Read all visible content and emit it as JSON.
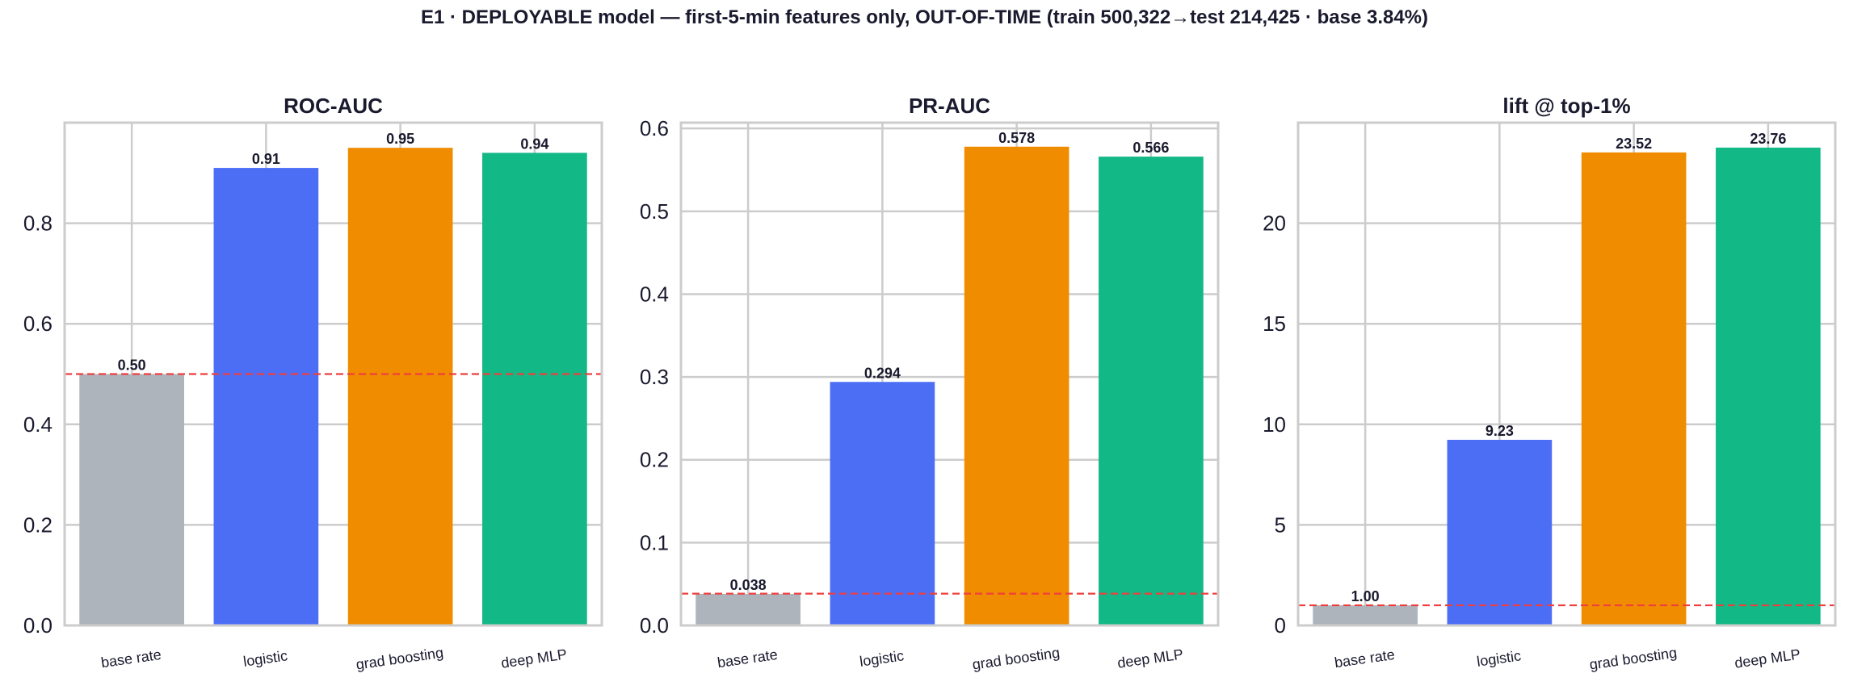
{
  "figure_title": "E1 · DEPLOYABLE model — first-5-min features only, OUT-OF-TIME (train 500,322→test 214,425 · base 3.84%)",
  "colors": {
    "base_rate": "#adb4bc",
    "logistic": "#4c6ef5",
    "grad_boosting": "#f08c00",
    "deep_mlp": "#12b886",
    "reference_line": "#f03e3e",
    "grid": "#cccccc",
    "text": "#1a1a2e"
  },
  "chart_data": [
    {
      "type": "bar",
      "title": "ROC-AUC",
      "categories": [
        "base rate",
        "logistic",
        "grad boosting",
        "deep MLP"
      ],
      "values": [
        0.5,
        0.91,
        0.95,
        0.94
      ],
      "value_labels": [
        "0.50",
        "0.91",
        "0.95",
        "0.94"
      ],
      "ylim": [
        0,
        1.0
      ],
      "yticks": [
        0.0,
        0.2,
        0.4,
        0.6,
        0.8
      ],
      "ytick_labels": [
        "0.0",
        "0.2",
        "0.4",
        "0.6",
        "0.8"
      ],
      "reference_line": 0.5,
      "grid": true
    },
    {
      "type": "bar",
      "title": "PR-AUC",
      "categories": [
        "base rate",
        "logistic",
        "grad boosting",
        "deep MLP"
      ],
      "values": [
        0.038,
        0.294,
        0.578,
        0.566
      ],
      "value_labels": [
        "0.038",
        "0.294",
        "0.578",
        "0.566"
      ],
      "ylim": [
        0,
        0.607
      ],
      "yticks": [
        0.0,
        0.1,
        0.2,
        0.3,
        0.4,
        0.5,
        0.6
      ],
      "ytick_labels": [
        "0.0",
        "0.1",
        "0.2",
        "0.3",
        "0.4",
        "0.5",
        "0.6"
      ],
      "reference_line": 0.0384,
      "grid": true
    },
    {
      "type": "bar",
      "title": "lift @ top-1%",
      "categories": [
        "base rate",
        "logistic",
        "grad boosting",
        "deep MLP"
      ],
      "values": [
        1.0,
        9.23,
        23.52,
        23.76
      ],
      "value_labels": [
        "1.00",
        "9.23",
        "23.52",
        "23.76"
      ],
      "ylim": [
        0,
        25.0
      ],
      "yticks": [
        0,
        5,
        10,
        15,
        20
      ],
      "ytick_labels": [
        "0",
        "5",
        "10",
        "15",
        "20"
      ],
      "reference_line": 1.0,
      "grid": true
    }
  ]
}
